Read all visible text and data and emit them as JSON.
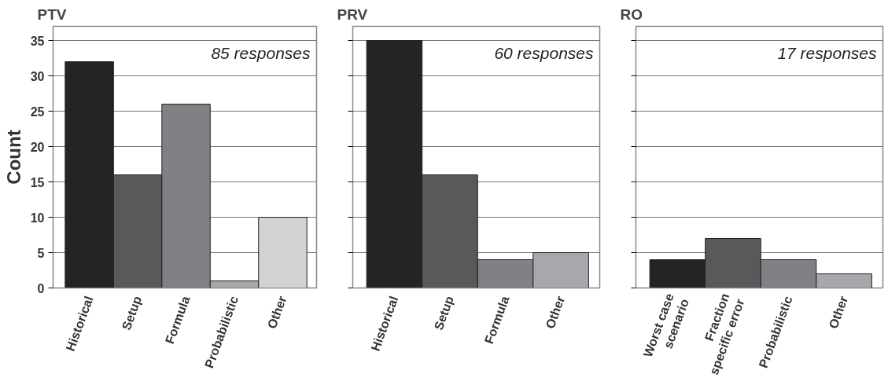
{
  "chart_data": [
    {
      "type": "bar",
      "title": "PTV",
      "ylabel": "Count",
      "categories": [
        "Historical",
        "Setup",
        "Formula",
        "Probabilistic",
        "Other"
      ],
      "values": [
        32,
        16,
        26,
        1,
        10
      ],
      "colors": [
        "#252324",
        "#58595b",
        "#808184",
        "#a7a8ab",
        "#d1d2d4"
      ],
      "ylim": [
        0,
        37
      ],
      "yticks": [
        0,
        5,
        10,
        15,
        20,
        25,
        30,
        35
      ],
      "grid": "y",
      "annotations": [
        "85 responses"
      ]
    },
    {
      "type": "bar",
      "title": "PRV",
      "categories": [
        "Historical",
        "Setup",
        "Formula",
        "Other"
      ],
      "values": [
        35,
        16,
        4,
        5
      ],
      "colors": [
        "#252324",
        "#58595b",
        "#808184",
        "#a7a8ab"
      ],
      "ylim": [
        0,
        37
      ],
      "yticks": [
        0,
        5,
        10,
        15,
        20,
        25,
        30,
        35
      ],
      "grid": "y",
      "tick_labels": "x",
      "annotations": [
        "60 responses"
      ]
    },
    {
      "type": "bar",
      "title": "RO",
      "categories": [
        "Worst case\nscenario",
        "Fraction\nspecific error",
        "Probabilistic",
        "Other"
      ],
      "values": [
        4,
        7,
        4,
        2
      ],
      "colors": [
        "#252324",
        "#58595b",
        "#808184",
        "#a7a8ab"
      ],
      "ylim": [
        0,
        37
      ],
      "yticks": [
        0,
        5,
        10,
        15,
        20,
        25,
        30,
        35
      ],
      "grid": "y",
      "tick_labels": "x",
      "annotations": [
        "17 responses"
      ]
    }
  ]
}
